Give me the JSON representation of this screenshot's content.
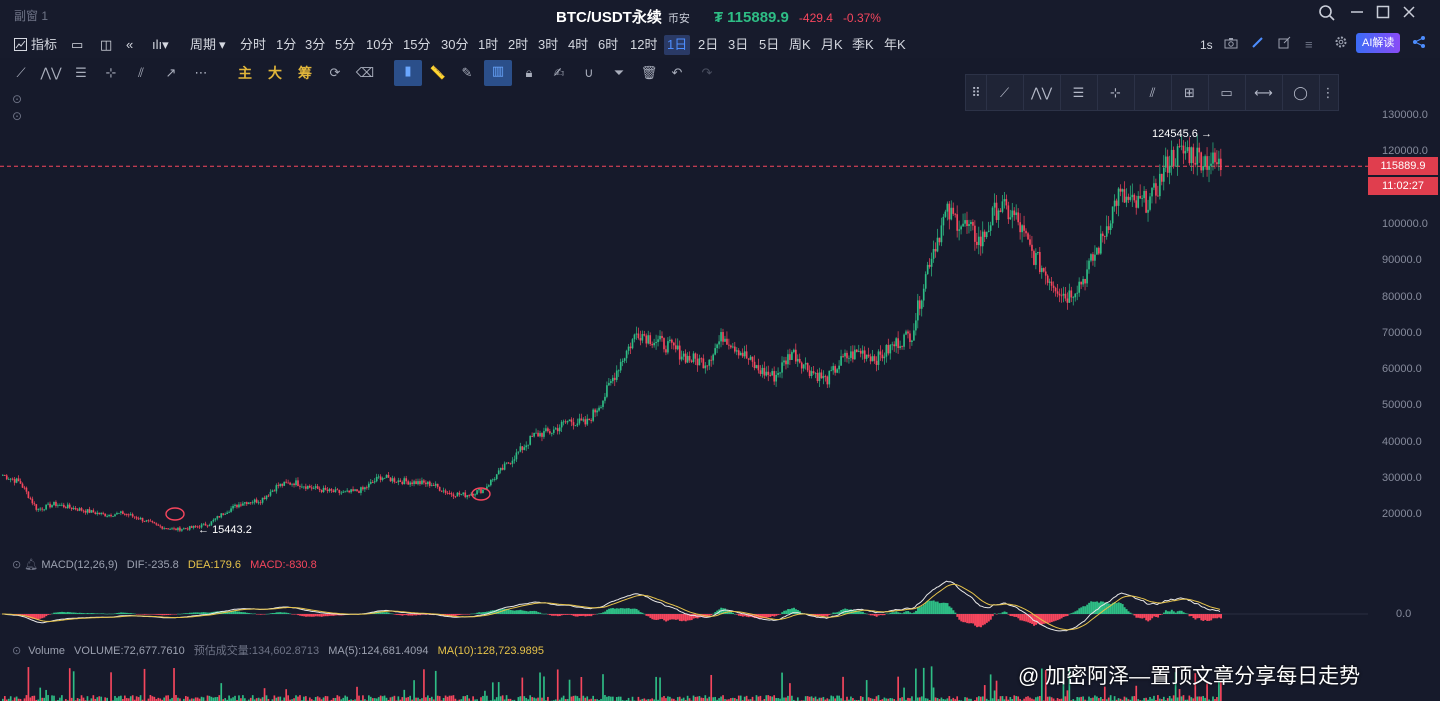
{
  "window": {
    "title": "副窗 1"
  },
  "ticker": {
    "symbol": "BTC/USDT永续",
    "exchange": "币安",
    "price": "₮ 115889.9",
    "change": "-429.4",
    "change_pct": "-0.37%"
  },
  "toolbar": {
    "items": [
      "指标",
      "周期",
      "分时",
      "1分",
      "3分",
      "5分",
      "10分",
      "15分",
      "30分",
      "1时",
      "2时",
      "3时",
      "4时",
      "6时",
      "12时",
      "1日",
      "2日",
      "3日",
      "5日",
      "周K",
      "月K",
      "季K",
      "年K"
    ],
    "selected": "1日",
    "refresh": "1s",
    "ai_label": "AI解读"
  },
  "drawtools": {
    "main": "主",
    "big": "大",
    "chip": "筹"
  },
  "price_axis": {
    "ticks": [
      "130000.0",
      "120000.0",
      "110000.0",
      "100000.0",
      "90000.0",
      "80000.0",
      "70000.0",
      "60000.0",
      "50000.0",
      "40000.0",
      "30000.0",
      "20000.0"
    ],
    "current_price": "115889.9",
    "countdown": "11:02:27",
    "macd_zero": "0.0"
  },
  "annotations": {
    "high": "124545.6",
    "low": "15443.2"
  },
  "macd": {
    "title": "MACD(12,26,9)",
    "dif": "DIF:-235.8",
    "dea": "DEA:179.6",
    "macd": "MACD:-830.8"
  },
  "volume": {
    "title": "Volume",
    "volume": "VOLUME:72,677.7610",
    "est": "预估成交量:134,602.8713",
    "ma5": "MA(5):124,681.4094",
    "ma10": "MA(10):128,723.9895"
  },
  "watermark": "@ 加密阿泽—置顶文章分享每日走势",
  "colors": {
    "bg": "#161a2b",
    "up": "#2ebd85",
    "down": "#f6465d",
    "accent": "#4d8dff",
    "dea": "#e6c34a"
  },
  "chart_data": {
    "type": "candlestick",
    "series": [
      {
        "name": "BTC/USDT",
        "values": [
          31000,
          29000,
          21500,
          23000,
          22000,
          21000,
          20000,
          20500,
          19000,
          17000,
          16000,
          16500,
          17500,
          21000,
          23500,
          24000,
          28000,
          29000,
          27500,
          26500,
          26000,
          27000,
          30500,
          29500,
          29000,
          28500,
          26000,
          25500,
          27000,
          32000,
          37000,
          42000,
          43000,
          46000,
          45000,
          52000,
          62000,
          70500,
          68000,
          66000,
          63000,
          62000,
          69500,
          65000,
          60000,
          58000,
          65000,
          60000,
          57000,
          63000,
          65000,
          63000,
          67000,
          70000,
          90000,
          103000,
          100000,
          95000,
          105000,
          102000,
          92000,
          85000,
          80000,
          85000,
          95000,
          108000,
          105000,
          107000,
          118000,
          120000,
          118000,
          115900
        ]
      }
    ]
  }
}
